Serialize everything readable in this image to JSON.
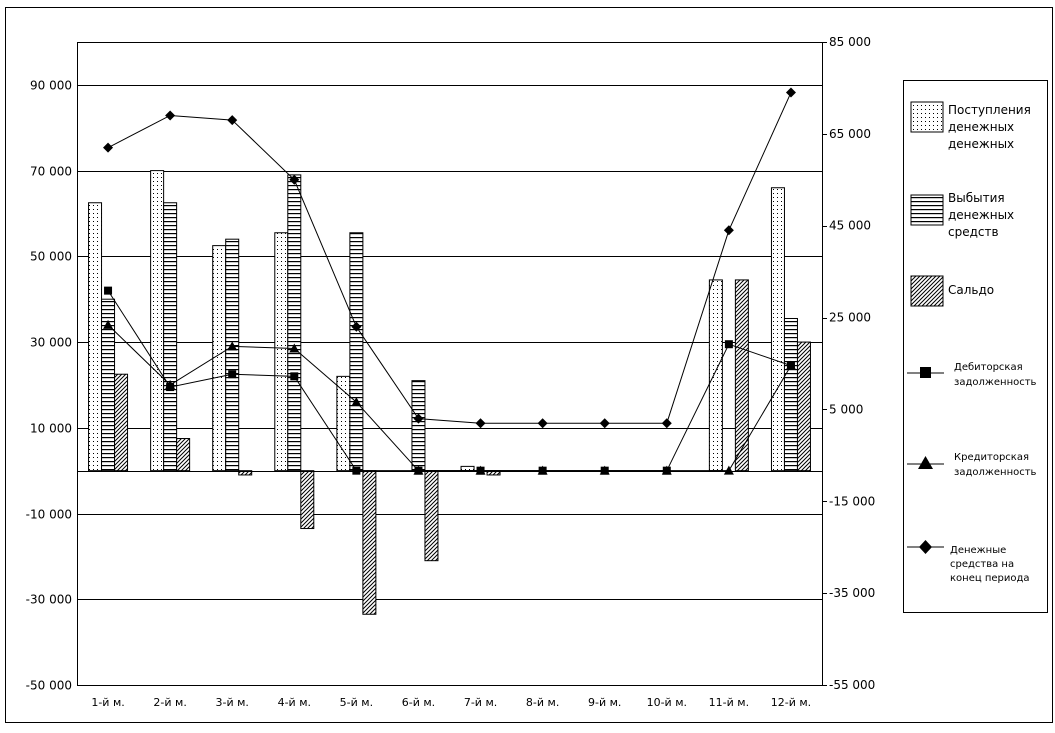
{
  "chart_data": {
    "type": "bar",
    "categories": [
      "1-й м.",
      "2-й м.",
      "3-й м.",
      "4-й м.",
      "5-й м.",
      "6-й м.",
      "7-й м.",
      "8-й м.",
      "9-й м.",
      "10-й м.",
      "11-й м.",
      "12-й м."
    ],
    "y_left_ticks": [
      "90 000",
      "70 000",
      "50 000",
      "30 000",
      "10 000",
      "-10 000",
      "-30 000",
      "-50 000"
    ],
    "y_right_ticks": [
      "85 000",
      "65 000",
      "45 000",
      "25 000",
      "5 000",
      "-15 000",
      "-35 000",
      "-55 000"
    ],
    "y_left_range": [
      -50000,
      100000
    ],
    "y_right_range": [
      -55000,
      85000
    ],
    "legend_position": "right",
    "grid": true,
    "series": [
      {
        "name": "Поступления денежных денежных",
        "kind": "bar",
        "axis": "left",
        "pattern": "dots",
        "values": [
          62500,
          70000,
          52500,
          55500,
          22000,
          0,
          1000,
          0,
          0,
          0,
          44500,
          66000
        ]
      },
      {
        "name": "Выбытия денежных средств",
        "kind": "bar",
        "axis": "left",
        "pattern": "horizontal-lines",
        "values": [
          40000,
          62500,
          54000,
          69000,
          55500,
          21000,
          0,
          0,
          0,
          0,
          0,
          35500
        ]
      },
      {
        "name": "Сальдо",
        "kind": "bar",
        "axis": "left",
        "pattern": "diagonal-hatch",
        "values": [
          22500,
          7500,
          -1000,
          -13500,
          -33500,
          -21000,
          -1000,
          0,
          0,
          0,
          44500,
          30000
        ]
      },
      {
        "name": "Дебиторская задолженность",
        "kind": "line",
        "axis": "left",
        "marker": "square",
        "values": [
          42000,
          19500,
          22500,
          22000,
          0,
          0,
          0,
          0,
          0,
          0,
          29500,
          24500
        ]
      },
      {
        "name": "Кредиторская задолженность",
        "kind": "line",
        "axis": "left",
        "marker": "triangle",
        "values": [
          34000,
          20000,
          29000,
          28500,
          16000,
          0,
          0,
          0,
          0,
          0,
          0,
          24500
        ]
      },
      {
        "name": "Денежные средства на конец периода",
        "kind": "line",
        "axis": "right",
        "marker": "diamond",
        "values": [
          62000,
          69000,
          68000,
          55000,
          23000,
          3000,
          2000,
          2000,
          2000,
          2000,
          44000,
          74000
        ]
      }
    ]
  },
  "legend": [
    {
      "label": "Поступления денежных денежных"
    },
    {
      "label": "Выбытия денежных средств"
    },
    {
      "label": "Сальдо"
    },
    {
      "label": "Дебиторская задолженность"
    },
    {
      "label": "Кредиторская задолженность"
    },
    {
      "label": "Денежные средства на конец периода"
    }
  ]
}
